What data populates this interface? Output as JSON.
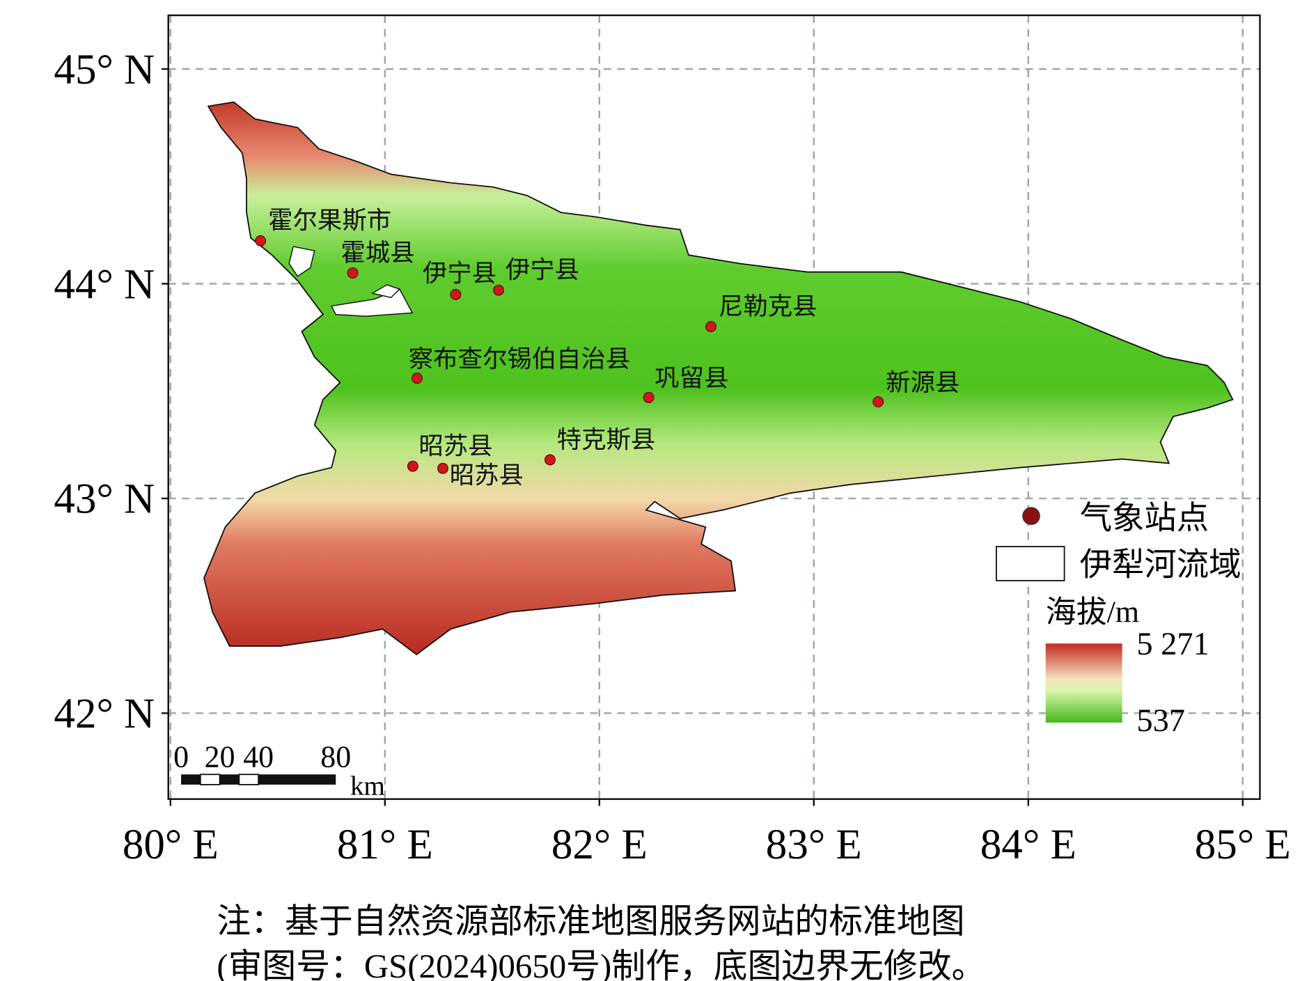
{
  "map": {
    "xlim": [
      79.99,
      85.08
    ],
    "ylim": [
      41.6,
      45.25
    ],
    "lon_ticks": [
      {
        "value": 80,
        "label": "80° E"
      },
      {
        "value": 81,
        "label": "81° E"
      },
      {
        "value": 82,
        "label": "82° E"
      },
      {
        "value": 83,
        "label": "83° E"
      },
      {
        "value": 84,
        "label": "84° E"
      },
      {
        "value": 85,
        "label": "85° E"
      }
    ],
    "lat_ticks": [
      {
        "value": 42,
        "label": "42° N"
      },
      {
        "value": 43,
        "label": "43° N"
      },
      {
        "value": 44,
        "label": "44° N"
      },
      {
        "value": 45,
        "label": "45° N"
      }
    ],
    "grid": true,
    "stations": [
      {
        "name": "霍尔果斯市",
        "lon": 80.42,
        "lat": 44.2
      },
      {
        "name": "霍城县",
        "lon": 80.85,
        "lat": 44.05
      },
      {
        "name": "伊宁县",
        "lon": 81.33,
        "lat": 43.95
      },
      {
        "name": "伊宁县",
        "lon": 81.53,
        "lat": 43.97
      },
      {
        "name": "尼勒克县",
        "lon": 82.52,
        "lat": 43.8
      },
      {
        "name": "察布查尔锡伯自治县",
        "lon": 81.15,
        "lat": 43.56
      },
      {
        "name": "巩留县",
        "lon": 82.23,
        "lat": 43.47
      },
      {
        "name": "新源县",
        "lon": 83.3,
        "lat": 43.45
      },
      {
        "name": "昭苏县",
        "lon": 81.13,
        "lat": 43.15
      },
      {
        "name": "昭苏县",
        "lon": 81.27,
        "lat": 43.14
      },
      {
        "name": "特克斯县",
        "lon": 81.77,
        "lat": 43.18
      }
    ],
    "station_color": "#d0181c",
    "scale_bar": {
      "ticks": [
        0,
        20,
        40,
        80
      ],
      "unit": "km"
    },
    "legend": {
      "station": "气象站点",
      "basin": "伊犁河流域",
      "elevation": {
        "title": "海拔/m",
        "max": {
          "value": 5271,
          "label": "5 271"
        },
        "min": 537
      }
    }
  },
  "note": [
    "注：基于自然资源部标准地图服务网站的标准地图",
    "(审图号：GS(2024)0650号)制作，底图边界无修改。"
  ]
}
